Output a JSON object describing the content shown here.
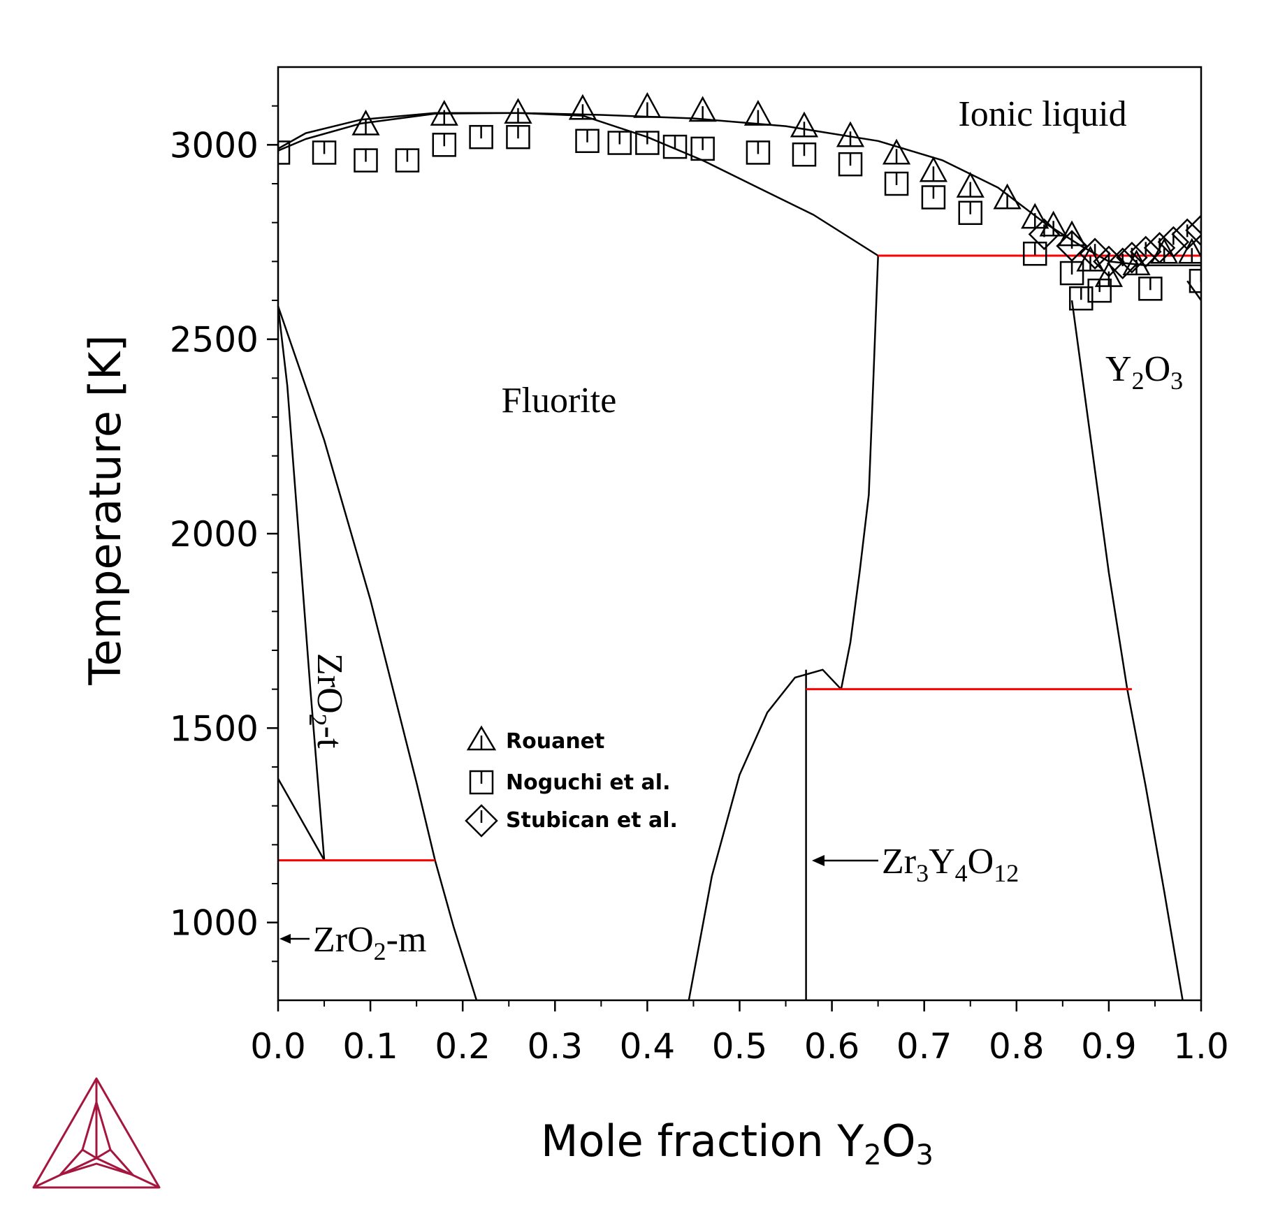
{
  "chart_data": {
    "type": "line",
    "xlabel": "Mole fraction Y2O3",
    "xlabel_main": "Mole fraction Y",
    "xlabel_sub1": "2",
    "xlabel_mid": "O",
    "xlabel_sub2": "3",
    "ylabel": "Temperature [K]",
    "xlim": [
      0.0,
      1.0
    ],
    "ylim": [
      800,
      3200
    ],
    "xticks": [
      "0.0",
      "0.1",
      "0.2",
      "0.3",
      "0.4",
      "0.5",
      "0.6",
      "0.7",
      "0.8",
      "0.9",
      "1.0"
    ],
    "yticks": [
      "1000",
      "1500",
      "2000",
      "2500",
      "3000"
    ],
    "grid": false,
    "line_color": "#000000",
    "invariant_color": "#ff0000",
    "logo_color": "#a5163f",
    "phase_boundaries": [
      {
        "x": [
          0.0,
          0.03,
          0.09,
          0.17,
          0.26,
          0.35,
          0.45,
          0.55,
          0.65,
          0.72,
          0.78,
          0.83,
          0.87,
          0.9,
          0.94,
          1.0
        ],
        "y": [
          2990,
          3030,
          3065,
          3082,
          3082,
          3077,
          3068,
          3048,
          3010,
          2960,
          2890,
          2800,
          2740,
          2700,
          2690,
          2690
        ]
      },
      {
        "x": [
          0.0,
          0.03,
          0.09,
          0.17,
          0.26,
          0.33,
          0.4
        ],
        "y": [
          2985,
          3015,
          3055,
          3080,
          3082,
          3075,
          3020
        ]
      },
      {
        "x": [
          0.4,
          0.46,
          0.52,
          0.58,
          0.65
        ],
        "y": [
          3020,
          2960,
          2890,
          2820,
          2715
        ]
      },
      {
        "x": [
          0.65,
          0.645,
          0.64,
          0.63,
          0.62,
          0.61
        ],
        "y": [
          2715,
          2400,
          2100,
          1900,
          1720,
          1600
        ]
      },
      {
        "x": [
          0.0,
          0.05,
          0.1,
          0.15,
          0.17
        ],
        "y": [
          2585,
          2240,
          1830,
          1360,
          1160
        ]
      },
      {
        "x": [
          0.17,
          0.19,
          0.215
        ],
        "y": [
          1160,
          990,
          800
        ]
      },
      {
        "x": [
          0.0,
          0.01,
          0.02,
          0.035,
          0.05
        ],
        "y": [
          2585,
          2380,
          2070,
          1600,
          1160
        ]
      },
      {
        "x": [
          0.0,
          0.05
        ],
        "y": [
          1370,
          1160
        ]
      },
      {
        "x": [
          0.445,
          0.47,
          0.5,
          0.53,
          0.56,
          0.59,
          0.61
        ],
        "y": [
          800,
          1120,
          1380,
          1540,
          1630,
          1650,
          1600
        ]
      },
      {
        "x": [
          0.572,
          0.572
        ],
        "y": [
          800,
          1650
        ]
      },
      {
        "x": [
          0.86,
          0.88,
          0.9,
          0.92,
          0.94,
          0.96,
          0.98
        ],
        "y": [
          2600,
          2250,
          1900,
          1600,
          1350,
          1080,
          800
        ]
      },
      {
        "x": [
          0.985,
          1.0
        ],
        "y": [
          2650,
          2600
        ]
      }
    ],
    "invariants": [
      {
        "x": [
          0.0,
          0.17
        ],
        "y": 1160
      },
      {
        "x": [
          0.572,
          0.925
        ],
        "y": 1600
      },
      {
        "x": [
          0.65,
          1.0
        ],
        "y": 2715
      }
    ],
    "series": [
      {
        "name": "Rouanet",
        "marker": "triangle",
        "x": [
          0.095,
          0.18,
          0.26,
          0.33,
          0.4,
          0.46,
          0.52,
          0.57,
          0.62,
          0.67,
          0.71,
          0.75,
          0.79,
          0.82,
          0.84,
          0.86,
          0.88,
          0.9,
          0.93,
          0.96,
          0.99
        ],
        "y": [
          3050,
          3075,
          3080,
          3090,
          3095,
          3085,
          3075,
          3045,
          3020,
          2975,
          2930,
          2890,
          2860,
          2810,
          2790,
          2765,
          2700,
          2660,
          2690,
          2720,
          2720
        ]
      },
      {
        "name": "Noguchi et al.",
        "marker": "square",
        "x": [
          0.0,
          0.05,
          0.095,
          0.14,
          0.18,
          0.22,
          0.26,
          0.335,
          0.37,
          0.4,
          0.43,
          0.46,
          0.52,
          0.57,
          0.62,
          0.67,
          0.71,
          0.75,
          0.82,
          0.86,
          0.87,
          0.89,
          0.945,
          1.0
        ],
        "y": [
          2980,
          2980,
          2960,
          2960,
          3000,
          3020,
          3020,
          3010,
          3005,
          3005,
          2995,
          2990,
          2980,
          2975,
          2950,
          2900,
          2865,
          2825,
          2720,
          2670,
          2605,
          2625,
          2630,
          2650
        ]
      },
      {
        "name": "Stubican et al.",
        "marker": "diamond",
        "x": [
          0.83,
          0.86,
          0.885,
          0.9,
          0.915,
          0.925,
          0.94,
          0.955,
          0.97,
          0.985,
          1.0
        ],
        "y": [
          2770,
          2740,
          2720,
          2700,
          2695,
          2710,
          2725,
          2735,
          2750,
          2770,
          2780
        ]
      }
    ],
    "annotations": [
      {
        "id": "liquid",
        "text": "Ionic liquid",
        "x": 0.82,
        "y": 3075
      },
      {
        "id": "fluorite",
        "text": "Fluorite",
        "x": 0.3,
        "y": 2350
      },
      {
        "id": "y2o3",
        "text": "Y2O3",
        "x": 0.945,
        "y": 2480
      },
      {
        "id": "zro2t",
        "text": "ZrO2-t",
        "x": 0.06,
        "y": 1600
      },
      {
        "id": "zro2m",
        "text": "ZrO2-m",
        "x": 0.09,
        "y": 965
      },
      {
        "id": "zr3y4o12",
        "text": "Zr3Y4O12",
        "x": 0.74,
        "y": 1170
      }
    ],
    "legend": {
      "position": "center-left",
      "entries": [
        "Rouanet",
        "Noguchi et al.",
        "Stubican et al."
      ]
    }
  }
}
